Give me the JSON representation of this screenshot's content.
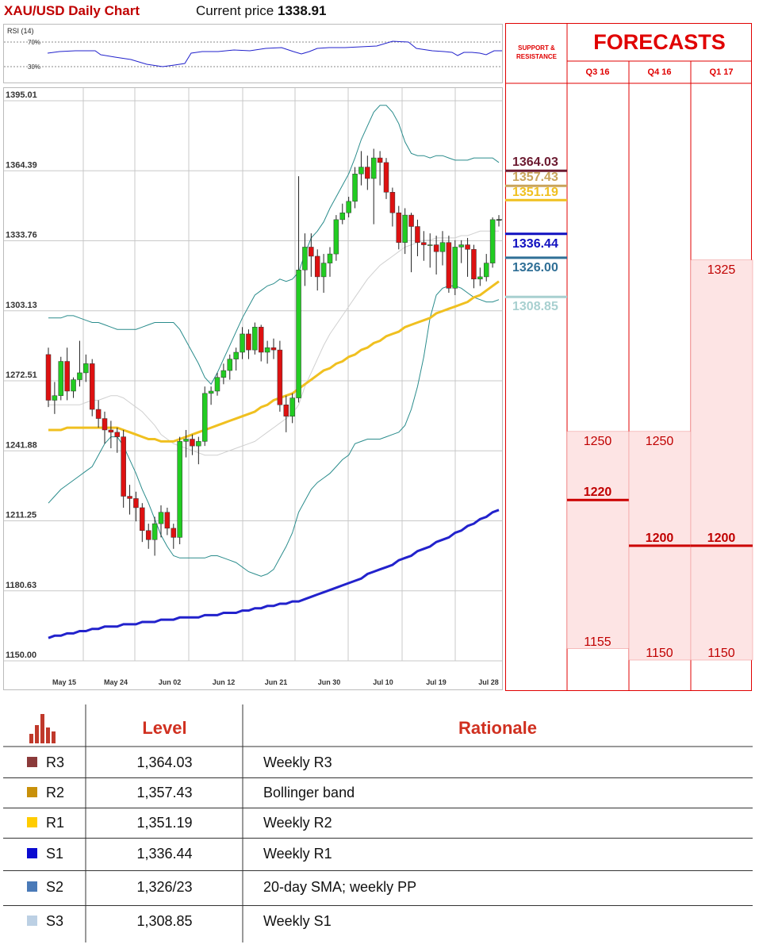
{
  "header": {
    "title": "XAU/USD Daily Chart",
    "price_prefix": "Current price",
    "price": "1338.91"
  },
  "rsi": {
    "label": "RSI (14)",
    "level_high": "70%",
    "level_low": "30%"
  },
  "colors": {
    "accent": "#e00000",
    "bull": "#22cc22",
    "bear": "#dd1111",
    "sma50": "#f0c020",
    "sma200": "#2222cc",
    "bands": "#2a8c8c",
    "forecast_fill": "#fde4e4"
  },
  "chart_data": {
    "type": "candlestick",
    "title": "XAU/USD Daily Chart",
    "yticks": [
      "1395.01",
      "1364.39",
      "1333.76",
      "1303.13",
      "1272.51",
      "1241.88",
      "1211.25",
      "1180.63",
      "1150.00"
    ],
    "ylim": [
      1150.0,
      1395.01
    ],
    "xticks": [
      "May 15",
      "May 24",
      "Jun 02",
      "Jun 12",
      "Jun 21",
      "Jun 30",
      "Jul 10",
      "Jul 19",
      "Jul 28"
    ],
    "candles": [
      [
        1284,
        1264,
        1287,
        1261
      ],
      [
        1264,
        1266,
        1272,
        1258
      ],
      [
        1266,
        1281,
        1283,
        1264
      ],
      [
        1281,
        1268,
        1287,
        1264
      ],
      [
        1268,
        1273,
        1274,
        1265
      ],
      [
        1273,
        1276,
        1290,
        1270
      ],
      [
        1276,
        1280,
        1284,
        1272
      ],
      [
        1280,
        1260,
        1282,
        1257
      ],
      [
        1260,
        1256,
        1264,
        1252
      ],
      [
        1256,
        1251,
        1259,
        1245
      ],
      [
        1251,
        1250,
        1255,
        1243
      ],
      [
        1250,
        1248,
        1252,
        1241
      ],
      [
        1248,
        1222,
        1251,
        1217
      ],
      [
        1222,
        1221,
        1227,
        1214
      ],
      [
        1221,
        1217,
        1224,
        1211
      ],
      [
        1217,
        1207,
        1219,
        1202
      ],
      [
        1207,
        1203,
        1210,
        1199
      ],
      [
        1203,
        1210,
        1213,
        1196
      ],
      [
        1210,
        1215,
        1218,
        1204
      ],
      [
        1215,
        1208,
        1217,
        1205
      ],
      [
        1208,
        1204,
        1210,
        1199
      ],
      [
        1204,
        1246,
        1248,
        1201
      ],
      [
        1246,
        1247,
        1251,
        1239
      ],
      [
        1247,
        1244,
        1249,
        1240
      ],
      [
        1244,
        1246,
        1248,
        1236
      ],
      [
        1246,
        1267,
        1270,
        1244
      ],
      [
        1267,
        1268,
        1270,
        1262
      ],
      [
        1268,
        1274,
        1276,
        1266
      ],
      [
        1274,
        1277,
        1280,
        1271
      ],
      [
        1277,
        1282,
        1284,
        1273
      ],
      [
        1282,
        1285,
        1287,
        1277
      ],
      [
        1285,
        1293,
        1296,
        1282
      ],
      [
        1293,
        1286,
        1295,
        1282
      ],
      [
        1286,
        1296,
        1298,
        1284
      ],
      [
        1296,
        1285,
        1297,
        1281
      ],
      [
        1285,
        1287,
        1290,
        1280
      ],
      [
        1287,
        1286,
        1291,
        1282
      ],
      [
        1286,
        1262,
        1290,
        1259
      ],
      [
        1262,
        1257,
        1266,
        1250
      ],
      [
        1257,
        1265,
        1267,
        1254
      ],
      [
        1265,
        1321,
        1362,
        1263
      ],
      [
        1321,
        1331,
        1337,
        1314
      ],
      [
        1331,
        1327,
        1337,
        1318
      ],
      [
        1327,
        1318,
        1330,
        1312
      ],
      [
        1318,
        1324,
        1328,
        1311
      ],
      [
        1324,
        1328,
        1331,
        1318
      ],
      [
        1328,
        1343,
        1345,
        1325
      ],
      [
        1343,
        1346,
        1350,
        1341
      ],
      [
        1346,
        1351,
        1353,
        1344
      ],
      [
        1351,
        1363,
        1366,
        1348
      ],
      [
        1363,
        1366,
        1373,
        1358
      ],
      [
        1366,
        1361,
        1371,
        1356
      ],
      [
        1361,
        1370,
        1374,
        1341
      ],
      [
        1370,
        1368,
        1373,
        1358
      ],
      [
        1368,
        1355,
        1370,
        1352
      ],
      [
        1355,
        1346,
        1357,
        1340
      ],
      [
        1346,
        1333,
        1349,
        1330
      ],
      [
        1333,
        1345,
        1348,
        1328
      ],
      [
        1345,
        1340,
        1346,
        1320
      ],
      [
        1340,
        1333,
        1343,
        1327
      ],
      [
        1333,
        1332,
        1338,
        1325
      ],
      [
        1332,
        1332,
        1337,
        1322
      ],
      [
        1332,
        1329,
        1336,
        1319
      ],
      [
        1329,
        1333,
        1338,
        1323
      ],
      [
        1333,
        1313,
        1336,
        1311
      ],
      [
        1313,
        1331,
        1334,
        1310
      ],
      [
        1331,
        1332,
        1334,
        1324
      ],
      [
        1332,
        1330,
        1335,
        1318
      ],
      [
        1330,
        1317,
        1332,
        1313
      ],
      [
        1317,
        1318,
        1322,
        1314
      ],
      [
        1318,
        1324,
        1328,
        1316
      ],
      [
        1324,
        1343,
        1344,
        1322
      ],
      [
        1343,
        1343,
        1345,
        1340
      ]
    ],
    "sma50": [
      1251,
      1251,
      1251,
      1252,
      1252,
      1252,
      1252,
      1252,
      1252,
      1252,
      1252,
      1252,
      1251,
      1250,
      1249,
      1248,
      1247,
      1247,
      1246,
      1246,
      1246,
      1247,
      1248,
      1249,
      1250,
      1251,
      1252,
      1253,
      1254,
      1255,
      1256,
      1257,
      1258,
      1259,
      1261,
      1262,
      1264,
      1265,
      1266,
      1267,
      1269,
      1271,
      1273,
      1275,
      1277,
      1278,
      1280,
      1281,
      1283,
      1284,
      1286,
      1287,
      1289,
      1290,
      1292,
      1293,
      1294,
      1296,
      1297,
      1298,
      1299,
      1300,
      1302,
      1303,
      1304,
      1305,
      1306,
      1307,
      1309,
      1310,
      1312,
      1314,
      1316
    ],
    "sma200": [
      1160,
      1161,
      1161,
      1162,
      1162,
      1163,
      1163,
      1164,
      1164,
      1165,
      1165,
      1165,
      1166,
      1166,
      1166,
      1167,
      1167,
      1167,
      1168,
      1168,
      1168,
      1169,
      1169,
      1169,
      1169,
      1170,
      1170,
      1170,
      1171,
      1171,
      1171,
      1172,
      1172,
      1173,
      1173,
      1174,
      1174,
      1175,
      1175,
      1176,
      1176,
      1177,
      1178,
      1179,
      1180,
      1181,
      1182,
      1183,
      1184,
      1185,
      1186,
      1188,
      1189,
      1190,
      1191,
      1192,
      1194,
      1195,
      1196,
      1198,
      1199,
      1200,
      1202,
      1203,
      1204,
      1206,
      1207,
      1209,
      1210,
      1212,
      1213,
      1215,
      1216
    ],
    "bb_upper": [
      1300,
      1300,
      1300,
      1301,
      1301,
      1300,
      1299,
      1298,
      1298,
      1297,
      1296,
      1295,
      1295,
      1295,
      1295,
      1296,
      1297,
      1298,
      1298,
      1298,
      1298,
      1295,
      1290,
      1285,
      1280,
      1274,
      1271,
      1276,
      1282,
      1288,
      1294,
      1300,
      1305,
      1310,
      1312,
      1314,
      1315,
      1317,
      1316,
      1317,
      1320,
      1328,
      1335,
      1338,
      1342,
      1348,
      1353,
      1358,
      1363,
      1370,
      1378,
      1384,
      1390,
      1393,
      1393,
      1390,
      1385,
      1377,
      1372,
      1371,
      1371,
      1370,
      1371,
      1371,
      1370,
      1369,
      1369,
      1369,
      1370,
      1370,
      1370,
      1370,
      1368
    ],
    "bb_lower": [
      1219,
      1222,
      1225,
      1227,
      1229,
      1231,
      1233,
      1235,
      1240,
      1245,
      1248,
      1248,
      1244,
      1238,
      1232,
      1225,
      1219,
      1212,
      1205,
      1200,
      1196,
      1195,
      1195,
      1195,
      1195,
      1195,
      1196,
      1196,
      1195,
      1194,
      1193,
      1191,
      1189,
      1188,
      1187,
      1188,
      1190,
      1195,
      1200,
      1206,
      1215,
      1220,
      1225,
      1228,
      1230,
      1232,
      1235,
      1238,
      1240,
      1245,
      1246,
      1247,
      1247,
      1247,
      1248,
      1249,
      1250,
      1253,
      1260,
      1270,
      1283,
      1300,
      1310,
      1313,
      1314,
      1314,
      1313,
      1311,
      1309,
      1308,
      1307,
      1307,
      1308
    ],
    "bb_mid": [
      1262,
      1262,
      1262,
      1262,
      1262,
      1262,
      1263,
      1264,
      1264,
      1265,
      1266,
      1266,
      1265,
      1263,
      1261,
      1259,
      1256,
      1253,
      1249,
      1247,
      1245,
      1244,
      1243,
      1242,
      1241,
      1240,
      1240,
      1240,
      1241,
      1242,
      1243,
      1244,
      1245,
      1246,
      1248,
      1250,
      1252,
      1254,
      1256,
      1258,
      1262,
      1270,
      1276,
      1282,
      1288,
      1293,
      1297,
      1301,
      1305,
      1309,
      1313,
      1317,
      1320,
      1323,
      1325,
      1327,
      1329,
      1331,
      1332,
      1333,
      1334,
      1334,
      1335,
      1335,
      1335,
      1335,
      1336,
      1336,
      1337,
      1338,
      1338,
      1338,
      1338
    ]
  },
  "support_resistance": {
    "title": "SUPPORT & RESISTANCE",
    "levels": [
      {
        "label": "1364.03",
        "value": 1364.03,
        "color": "#6b1a30"
      },
      {
        "label": "1357.43",
        "value": 1357.43,
        "color": "#c9a35a"
      },
      {
        "label": "1351.19",
        "value": 1351.19,
        "color": "#f0c020"
      },
      {
        "label": "1336.44",
        "value": 1336.44,
        "color": "#1010c0"
      },
      {
        "label": "1326.00",
        "value": 1326.0,
        "color": "#2f6f96"
      },
      {
        "label": "1308.85",
        "value": 1308.85,
        "color": "#a8d0d0"
      }
    ]
  },
  "forecasts": {
    "title": "FORECASTS",
    "quarters": [
      {
        "label": "Q3 16",
        "high": "1250",
        "mid": "1220",
        "low": "1155",
        "high_v": 1250,
        "mid_v": 1220,
        "low_v": 1155
      },
      {
        "label": "Q4 16",
        "high": "1250",
        "mid": "1200",
        "low": "1150",
        "high_v": 1250,
        "mid_v": 1200,
        "low_v": 1150
      },
      {
        "label": "Q1 17",
        "high": "1325",
        "mid": "1200",
        "low": "1150",
        "high_v": 1325,
        "mid_v": 1200,
        "low_v": 1150
      }
    ]
  },
  "table": {
    "headers": {
      "level": "Level",
      "rationale": "Rationale"
    },
    "rows": [
      {
        "name": "R3",
        "level": "1,364.03",
        "rationale": "Weekly R3",
        "color": "#8b3a3a"
      },
      {
        "name": "R2",
        "level": "1,357.43",
        "rationale": "Bollinger band",
        "color": "#c8900a"
      },
      {
        "name": "R1",
        "level": "1,351.19",
        "rationale": "Weekly R2",
        "color": "#ffcc00"
      },
      {
        "name": "S1",
        "level": "1,336.44",
        "rationale": "Weekly R1",
        "color": "#0a0ad0"
      },
      {
        "name": "S2",
        "level": "1,326/23",
        "rationale": "20-day SMA; weekly PP",
        "color": "#4a7ab8"
      },
      {
        "name": "S3",
        "level": "1,308.85",
        "rationale": "Weekly S1",
        "color": "#bcd0e4"
      }
    ]
  }
}
